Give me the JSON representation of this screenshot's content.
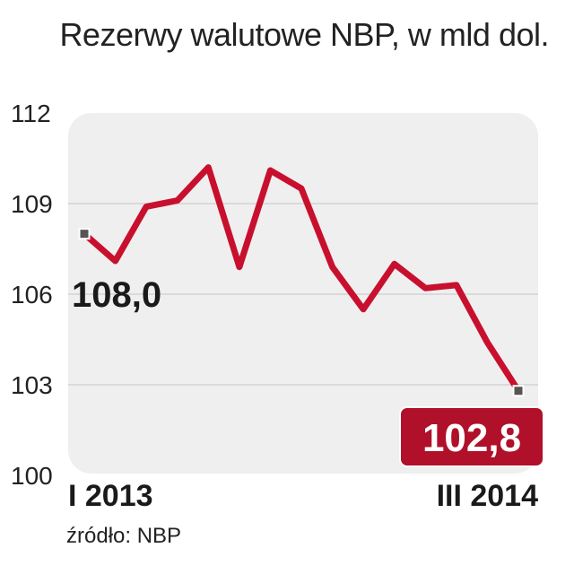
{
  "chart_data": {
    "type": "line",
    "title": "Rezerwy walutowe NBP, w mld dol.",
    "source": "źródło: NBP",
    "x_first": "I 2013",
    "x_last": "III 2014",
    "y_ticks": [
      "112",
      "109",
      "106",
      "103",
      "100"
    ],
    "y_tick_values": [
      112,
      109,
      106,
      103,
      100
    ],
    "ylim": [
      100,
      112
    ],
    "grid": true,
    "series": [
      {
        "values": [
          108.0,
          107.1,
          108.9,
          109.1,
          110.2,
          106.9,
          110.1,
          109.5,
          106.9,
          105.5,
          107.0,
          106.2,
          106.3,
          104.4,
          102.8
        ],
        "color": "#c8102e"
      }
    ],
    "start_label": "108,0",
    "end_label": "102,8",
    "end_label_bg": "#b0102a"
  }
}
